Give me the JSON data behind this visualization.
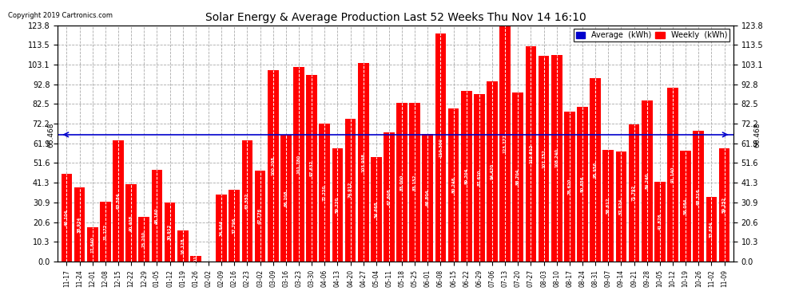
{
  "title": "Solar Energy & Average Production Last 52 Weeks Thu Nov 14 16:10",
  "copyright": "Copyright 2019 Cartronics.com",
  "average_value": 66.468,
  "average_label": "66.468",
  "bar_color": "#FF0000",
  "average_line_color": "#0000CC",
  "background_color": "#FFFFFF",
  "plot_bg_color": "#FFFFFF",
  "ylim": [
    0,
    123.8
  ],
  "yticks": [
    0.0,
    10.3,
    20.6,
    30.9,
    41.3,
    51.6,
    61.9,
    72.2,
    82.5,
    92.8,
    103.1,
    113.5,
    123.8
  ],
  "grid_color": "#AAAAAA",
  "legend_avg_color": "#0000CC",
  "legend_weekly_color": "#FF0000",
  "labels": [
    "11-17",
    "11-24",
    "12-01",
    "12-08",
    "12-15",
    "12-22",
    "12-29",
    "01-05",
    "01-12",
    "01-19",
    "01-26",
    "02-02",
    "02-09",
    "02-16",
    "02-23",
    "03-02",
    "03-09",
    "03-16",
    "03-23",
    "03-30",
    "04-06",
    "04-13",
    "04-20",
    "04-27",
    "05-04",
    "05-11",
    "05-18",
    "05-25",
    "06-01",
    "06-08",
    "06-15",
    "06-22",
    "06-29",
    "07-06",
    "07-13",
    "07-20",
    "07-27",
    "08-03",
    "08-10",
    "08-17",
    "08-24",
    "08-31",
    "09-07",
    "09-14",
    "09-21",
    "09-28",
    "10-05",
    "10-12",
    "10-19",
    "10-26",
    "11-02",
    "11-09"
  ],
  "values": [
    46.104,
    38.924,
    17.84,
    31.272,
    63.584,
    40.408,
    23.2,
    48.16,
    30.912,
    16.128,
    3.012,
    0.0,
    34.944,
    37.796,
    63.552,
    47.776,
    100.208,
    66.208,
    101.78,
    97.632,
    72.22,
    59.22,
    74.912,
    103.908,
    54.668,
    67.608,
    83.0,
    83.152,
    66.804,
    119.3,
    80.248,
    89.204,
    87.62,
    94.42,
    123.777,
    88.704,
    112.812,
    107.752,
    108.24,
    78.62,
    80.856,
    95.956,
    58.612,
    57.824,
    71.792,
    84.24,
    41.876,
    91.14,
    58.084,
    68.316,
    33.684,
    59.252
  ]
}
